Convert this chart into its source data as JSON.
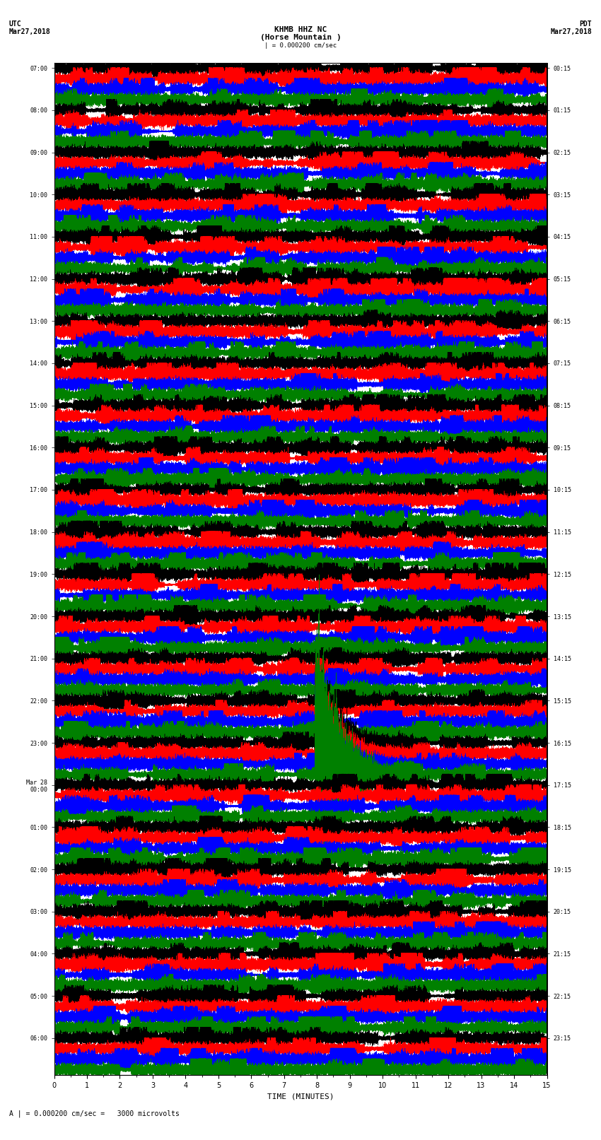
{
  "title_line1": "KHMB HHZ NC",
  "title_line2": "(Horse Mountain )",
  "scale_text": "| = 0.000200 cm/sec",
  "footer_text": "A | = 0.000200 cm/sec =   3000 microvolts",
  "xlabel": "TIME (MINUTES)",
  "utc_label1": "UTC",
  "utc_label2": "Mar27,2018",
  "pdt_label1": "PDT",
  "pdt_label2": "Mar27,2018",
  "background_color": "#ffffff",
  "trace_colors": [
    "black",
    "red",
    "blue",
    "green"
  ],
  "fig_width": 8.5,
  "fig_height": 16.13,
  "left_times": [
    "07:00",
    "08:00",
    "09:00",
    "10:00",
    "11:00",
    "12:00",
    "13:00",
    "14:00",
    "15:00",
    "16:00",
    "17:00",
    "18:00",
    "19:00",
    "20:00",
    "21:00",
    "22:00",
    "23:00",
    "Mar 28\n00:00",
    "01:00",
    "02:00",
    "03:00",
    "04:00",
    "05:00",
    "06:00"
  ],
  "right_times": [
    "00:15",
    "01:15",
    "02:15",
    "03:15",
    "04:15",
    "05:15",
    "06:15",
    "07:15",
    "08:15",
    "09:15",
    "10:15",
    "11:15",
    "12:15",
    "13:15",
    "14:15",
    "15:15",
    "16:15",
    "17:15",
    "18:15",
    "19:15",
    "20:15",
    "21:15",
    "22:15",
    "23:15"
  ],
  "n_rows": 24,
  "n_traces_per_row": 4,
  "duration_minutes": 15,
  "sample_rate": 100,
  "seed": 42
}
